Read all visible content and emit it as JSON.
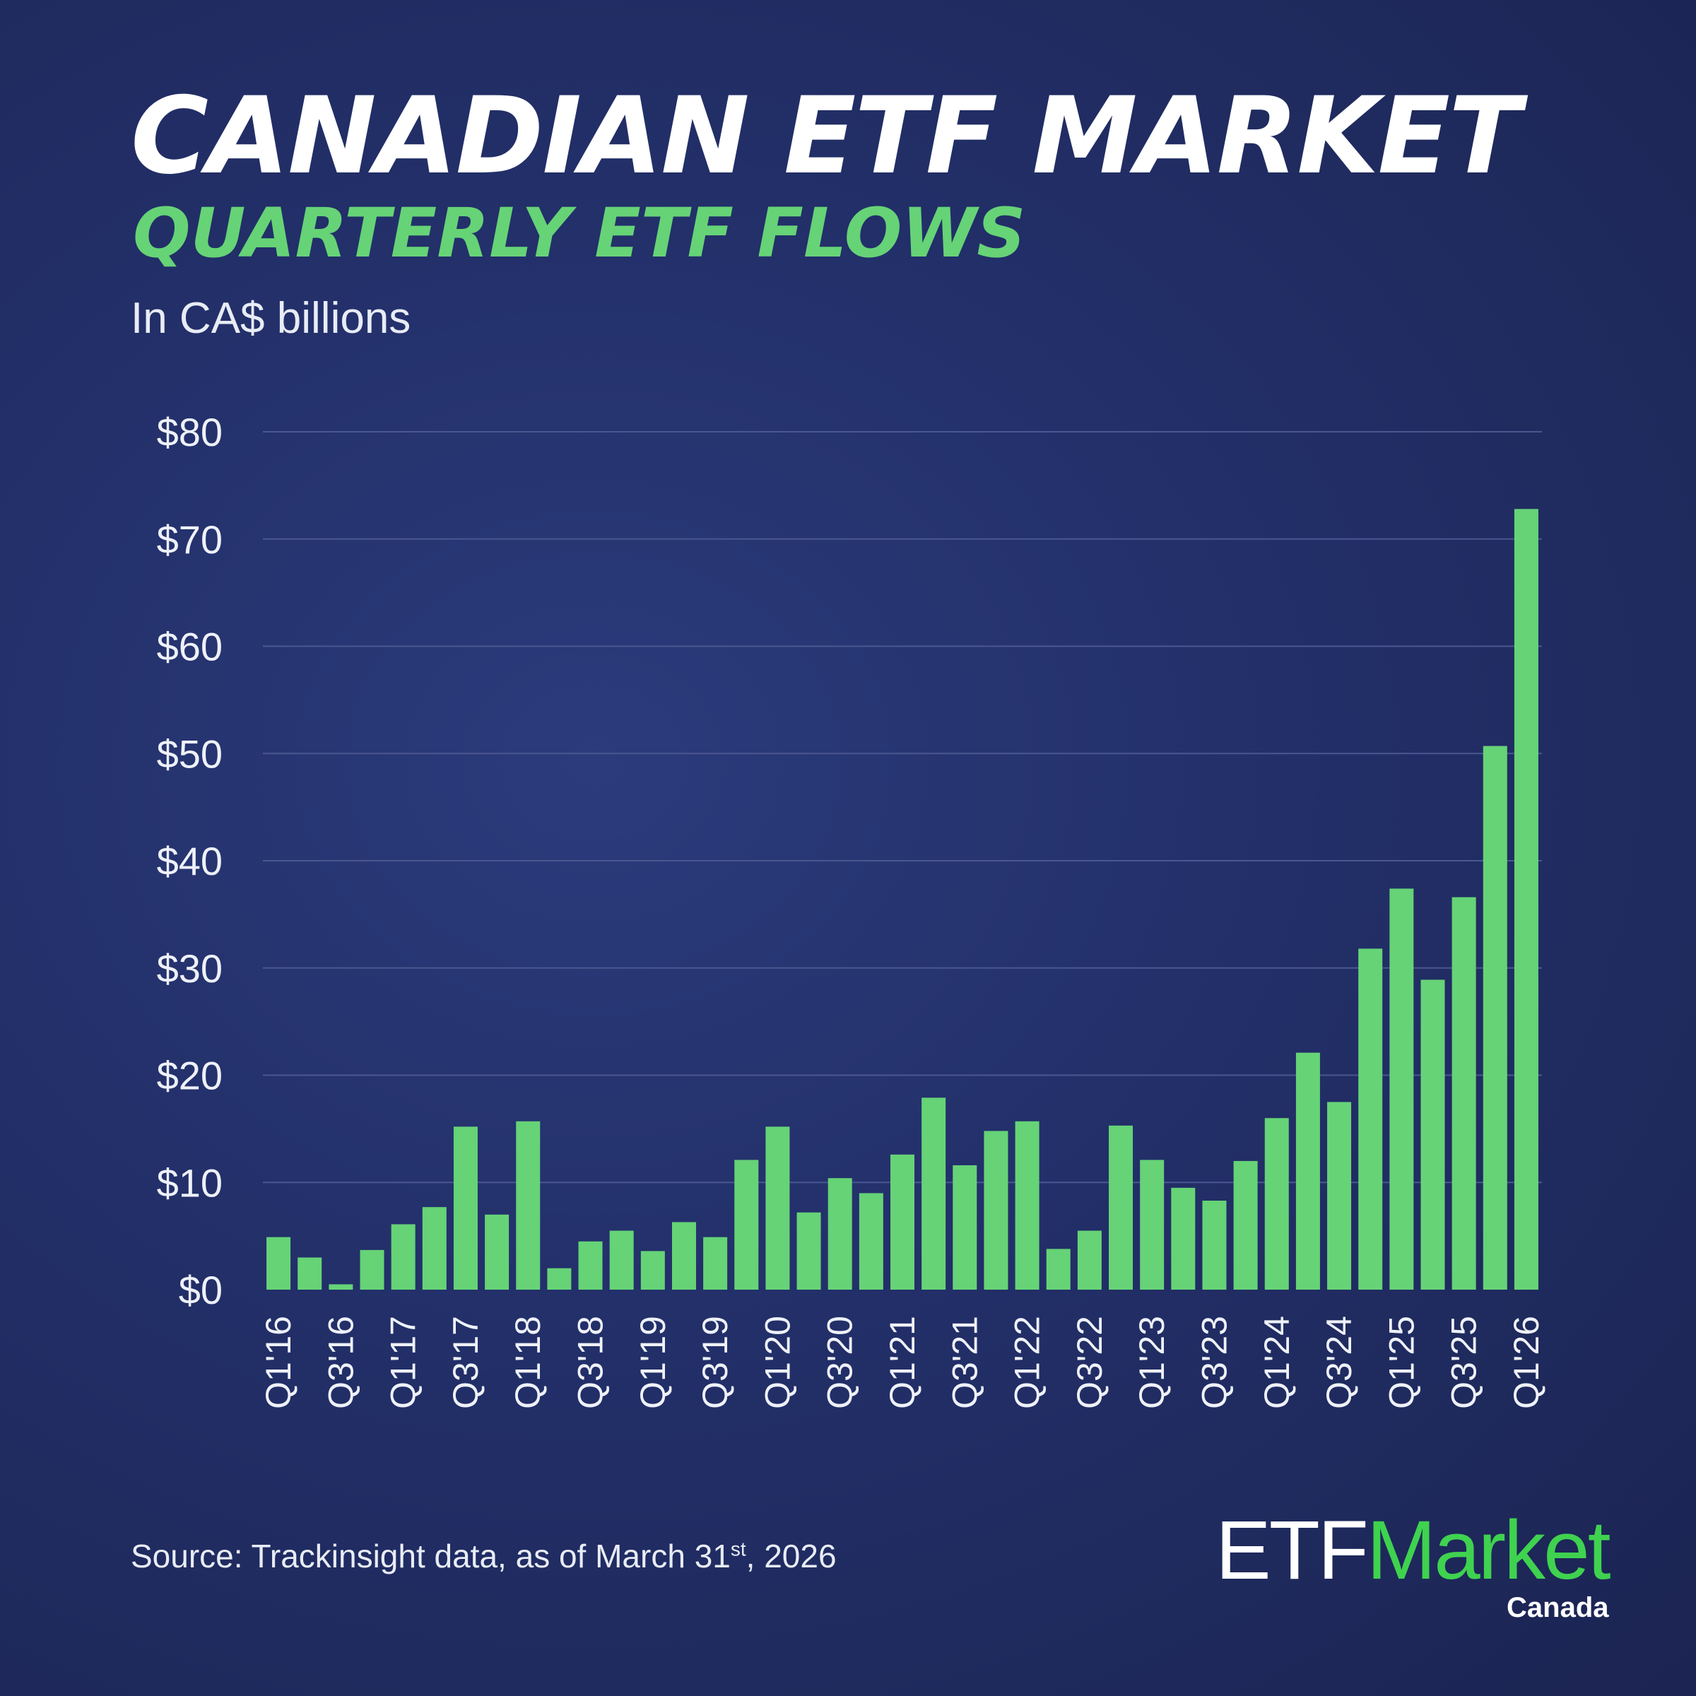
{
  "header": {
    "title": "CANADIAN ETF MARKET",
    "subtitle": "QUARTERLY ETF FLOWS",
    "unit": "In CA$ billions"
  },
  "footer": {
    "source_prefix": "Source: Trackinsight data, as of March 31",
    "source_sup": "st",
    "source_suffix": ", 2026",
    "logo_etf": "ETF",
    "logo_market": "Market",
    "logo_canada": "Canada"
  },
  "colors": {
    "bar": "#66d377",
    "background": "#23306a",
    "grid": "#4a5790"
  },
  "chart_data": {
    "type": "bar",
    "title": "QUARTERLY ETF FLOWS",
    "ylabel": "In CA$ billions",
    "ylim": [
      0,
      80
    ],
    "grid": true,
    "yticks": [
      "$0",
      "$10",
      "$20",
      "$30",
      "$40",
      "$50",
      "$60",
      "$70",
      "$80"
    ],
    "categories": [
      "Q1'16",
      "Q2'16",
      "Q3'16",
      "Q4'16",
      "Q1'17",
      "Q2'17",
      "Q3'17",
      "Q4'17",
      "Q1'18",
      "Q2'18",
      "Q3'18",
      "Q4'18",
      "Q1'19",
      "Q2'19",
      "Q3'19",
      "Q4'19",
      "Q1'20",
      "Q2'20",
      "Q3'20",
      "Q4'20",
      "Q1'21",
      "Q2'21",
      "Q3'21",
      "Q4'21",
      "Q1'22",
      "Q2'22",
      "Q3'22",
      "Q4'22",
      "Q1'23",
      "Q2'23",
      "Q3'23",
      "Q4'23",
      "Q1'24",
      "Q2'24",
      "Q3'24",
      "Q4'24",
      "Q1'25",
      "Q2'25",
      "Q3'25",
      "Q4'25",
      "Q1'26"
    ],
    "values": [
      4.9,
      3.0,
      0.5,
      3.7,
      6.1,
      7.7,
      15.2,
      7.0,
      15.7,
      2.0,
      4.5,
      5.5,
      3.6,
      6.3,
      4.9,
      12.1,
      15.2,
      7.2,
      10.4,
      9.0,
      12.6,
      17.9,
      11.6,
      14.8,
      15.7,
      3.8,
      5.5,
      15.3,
      12.1,
      9.5,
      8.3,
      12.0,
      16.0,
      22.1,
      17.5,
      31.8,
      37.4,
      28.9,
      36.6,
      50.7,
      72.8
    ],
    "shown_xlabels": [
      "Q1'16",
      "Q3'16",
      "Q1'17",
      "Q3'17",
      "Q1'18",
      "Q3'18",
      "Q1'19",
      "Q3'19",
      "Q1'20",
      "Q3'20",
      "Q1'21",
      "Q3'21",
      "Q1'22",
      "Q3'22",
      "Q1'23",
      "Q3'23",
      "Q1'24",
      "Q3'24",
      "Q1'25",
      "Q3'25",
      "Q1'26"
    ]
  }
}
